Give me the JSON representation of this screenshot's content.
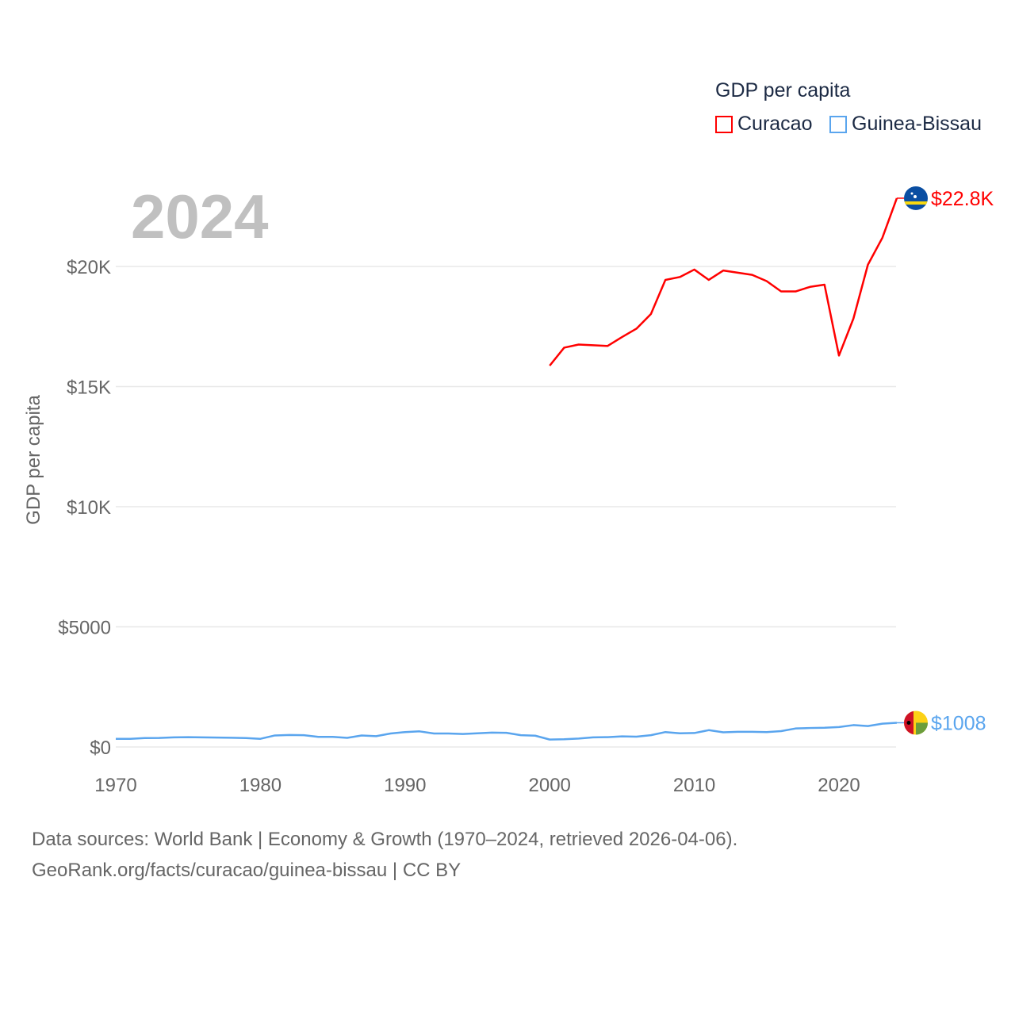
{
  "chart_data": {
    "type": "line",
    "title": "",
    "xlabel": "",
    "ylabel": "GDP per capita",
    "year_label": "2024",
    "xlim": [
      1970,
      2024
    ],
    "ylim": [
      0,
      23500
    ],
    "x_ticks": [
      1970,
      1980,
      1990,
      2000,
      2010,
      2020
    ],
    "x_tick_labels": [
      "1970",
      "1980",
      "1990",
      "2000",
      "2010",
      "2020"
    ],
    "y_ticks": [
      0,
      5000,
      10000,
      15000,
      20000
    ],
    "y_tick_labels": [
      "$0",
      "$5000",
      "$10K",
      "$15K",
      "$20K"
    ],
    "grid": true,
    "legend": {
      "title": "GDP per capita",
      "placement": "top-right"
    },
    "series": [
      {
        "name": "Curacao",
        "color": "#ff0000",
        "end_label": "$22.8K",
        "flag": "curacao-flag",
        "x": [
          2000,
          2001,
          2002,
          2003,
          2004,
          2005,
          2006,
          2007,
          2008,
          2009,
          2010,
          2011,
          2012,
          2013,
          2014,
          2015,
          2016,
          2017,
          2018,
          2019,
          2020,
          2021,
          2022,
          2023,
          2024
        ],
        "values": [
          15870,
          16620,
          16750,
          16720,
          16690,
          17060,
          17410,
          18020,
          19440,
          19560,
          19870,
          19440,
          19830,
          19740,
          19650,
          19390,
          18960,
          18960,
          19150,
          19240,
          16290,
          17830,
          20070,
          21190,
          22840
        ]
      },
      {
        "name": "Guinea-Bissau",
        "color": "#5aa5ee",
        "end_label": "$1008",
        "flag": "guinea-bissau-flag",
        "x": [
          1970,
          1971,
          1972,
          1973,
          1974,
          1975,
          1976,
          1977,
          1978,
          1979,
          1980,
          1981,
          1982,
          1983,
          1984,
          1985,
          1986,
          1987,
          1988,
          1989,
          1990,
          1991,
          1992,
          1993,
          1994,
          1995,
          1996,
          1997,
          1998,
          1999,
          2000,
          2001,
          2002,
          2003,
          2004,
          2005,
          2006,
          2007,
          2008,
          2009,
          2010,
          2011,
          2012,
          2013,
          2014,
          2015,
          2016,
          2017,
          2018,
          2019,
          2020,
          2021,
          2022,
          2023,
          2024
        ],
        "values": [
          340,
          340,
          370,
          375,
          400,
          410,
          400,
          390,
          385,
          370,
          340,
          480,
          500,
          490,
          420,
          420,
          380,
          480,
          450,
          560,
          620,
          650,
          560,
          560,
          540,
          570,
          600,
          590,
          490,
          470,
          310,
          320,
          350,
          400,
          410,
          440,
          430,
          490,
          620,
          570,
          580,
          700,
          610,
          630,
          630,
          620,
          660,
          770,
          790,
          800,
          830,
          910,
          870,
          970,
          1008
        ]
      }
    ]
  },
  "footer": {
    "line1": "Data sources: World Bank | Economy & Growth (1970–2024, retrieved 2026-04-06).",
    "line2": "GeoRank.org/facts/curacao/guinea-bissau | CC BY"
  }
}
